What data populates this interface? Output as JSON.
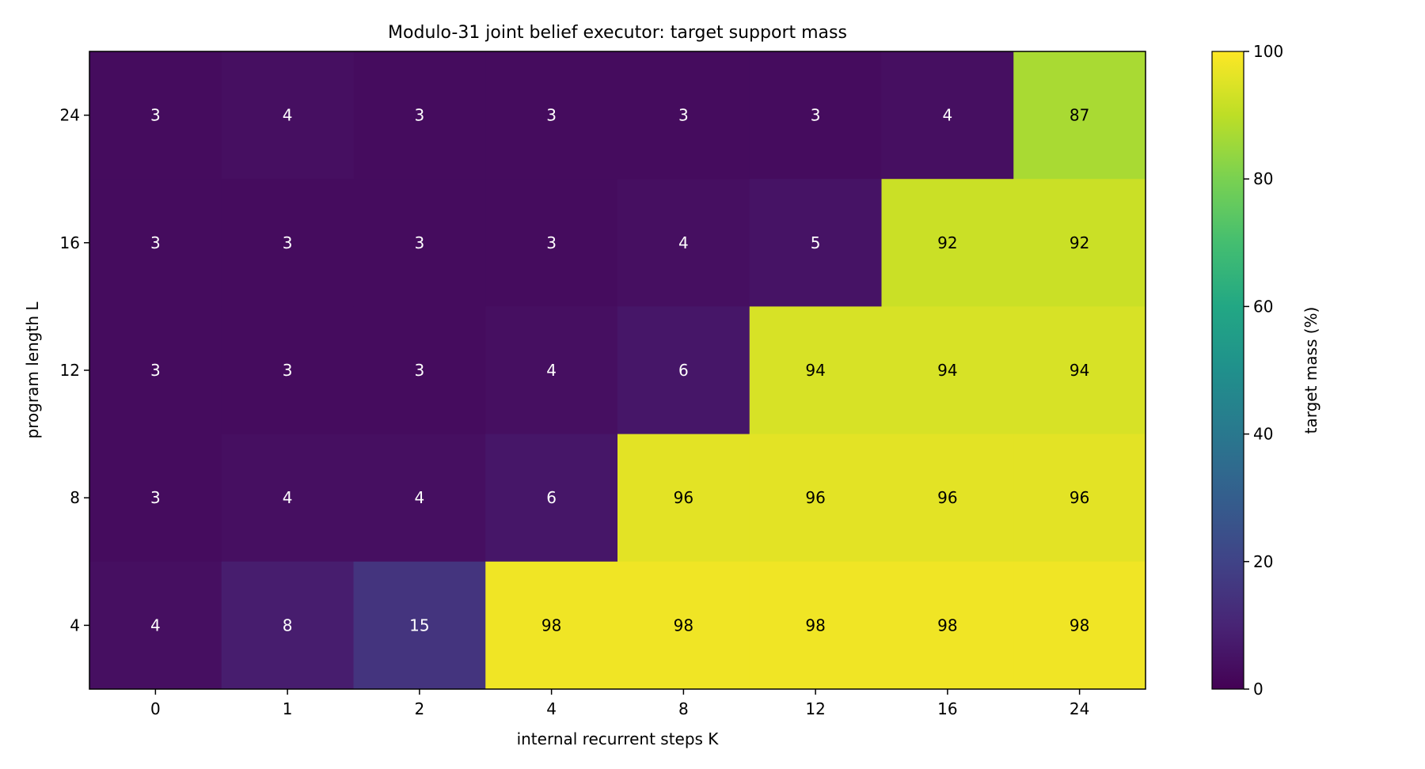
{
  "chart_data": {
    "type": "heatmap",
    "title": "Modulo-31 joint belief executor: target support mass",
    "xlabel": "internal recurrent steps K",
    "ylabel": "program length L",
    "x_categories": [
      "0",
      "1",
      "2",
      "4",
      "8",
      "12",
      "16",
      "24"
    ],
    "y_categories": [
      "24",
      "16",
      "12",
      "8",
      "4"
    ],
    "values": [
      [
        3,
        4,
        3,
        3,
        3,
        3,
        4,
        87
      ],
      [
        3,
        3,
        3,
        3,
        4,
        5,
        92,
        92
      ],
      [
        3,
        3,
        3,
        4,
        6,
        94,
        94,
        94
      ],
      [
        3,
        4,
        4,
        6,
        96,
        96,
        96,
        96
      ],
      [
        4,
        8,
        15,
        98,
        98,
        98,
        98,
        98
      ]
    ],
    "colorbar": {
      "label": "target mass (%)",
      "range": [
        0,
        100
      ],
      "ticks": [
        "0",
        "20",
        "40",
        "60",
        "80",
        "100"
      ],
      "colormap": "viridis"
    }
  }
}
